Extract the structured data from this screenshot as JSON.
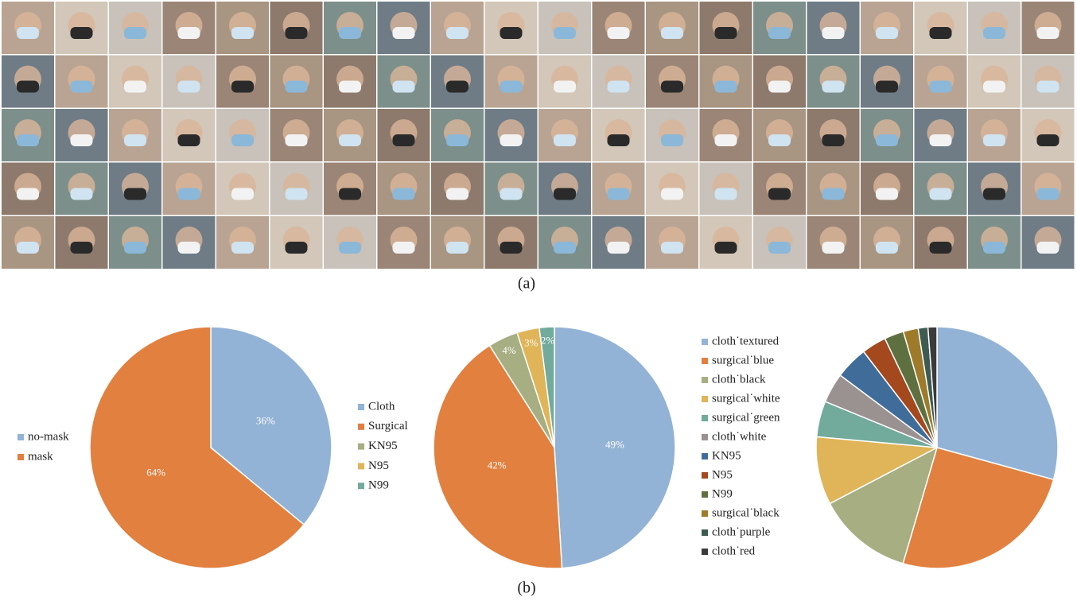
{
  "captions": {
    "a": "(a)",
    "b": "(b)"
  },
  "chart_data": [
    {
      "type": "pie",
      "categories": [
        "no-mask",
        "mask"
      ],
      "values": [
        36,
        64
      ],
      "value_labels": [
        "36%",
        "64%"
      ],
      "colors": [
        "#93b3d6",
        "#e2803f"
      ],
      "legend": "left"
    },
    {
      "type": "pie",
      "categories": [
        "Cloth",
        "Surgical",
        "KN95",
        "N95",
        "N99"
      ],
      "values": [
        49,
        42,
        4,
        3,
        2
      ],
      "value_labels": [
        "49%",
        "42%",
        "4%",
        "3%",
        "2%"
      ],
      "colors": [
        "#93b3d6",
        "#e2803f",
        "#a6ae82",
        "#e0b458",
        "#72aa9c"
      ],
      "legend": "left"
    },
    {
      "type": "pie",
      "categories": [
        "cloth˙textured",
        "surgical˙blue",
        "cloth˙black",
        "surgical˙white",
        "surgical˙green",
        "cloth˙white",
        "KN95",
        "N95",
        "N99",
        "surgical˙black",
        "cloth˙purple",
        "cloth˙red"
      ],
      "values": [
        29.3,
        25.3,
        12.8,
        9.1,
        4.8,
        4.0,
        4.4,
        3.3,
        2.6,
        2.0,
        1.3,
        1.2
      ],
      "colors": [
        "#93b3d6",
        "#e2803f",
        "#a6ae82",
        "#e0b458",
        "#72aa9c",
        "#9a9191",
        "#406c9a",
        "#a4481e",
        "#5f7040",
        "#9d7b2b",
        "#3d5b51",
        "#3b3b3b"
      ],
      "legend": "left"
    }
  ]
}
